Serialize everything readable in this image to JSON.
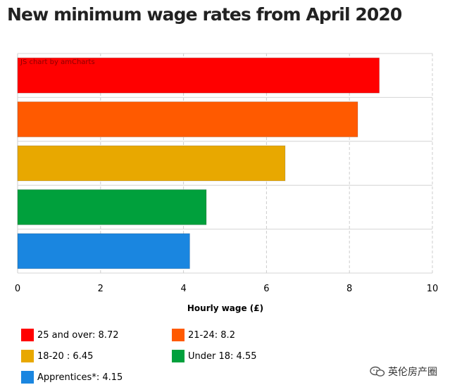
{
  "title": "New minimum wage rates from April 2020",
  "credit": "JS chart by amCharts",
  "watermark": "英伦房产圈",
  "chart_data": {
    "type": "bar",
    "orientation": "horizontal",
    "categories": [
      "25 and over",
      "21-24",
      "18-20",
      "Under 18",
      "Apprentices*"
    ],
    "values": [
      8.72,
      8.2,
      6.45,
      4.55,
      4.15
    ],
    "colors": [
      "#ff0000",
      "#ff5a00",
      "#e8a800",
      "#00a03c",
      "#1a86e0"
    ],
    "xlabel": "Hourly wage (£)",
    "xlim": [
      0,
      10
    ],
    "ticks": [
      "0",
      "2",
      "4",
      "6",
      "8",
      "10"
    ],
    "grid": true,
    "legend_position": "bottom"
  },
  "legend": [
    {
      "label": "25 and over: 8.72",
      "color": "#ff0000"
    },
    {
      "label": "21-24: 8.2",
      "color": "#ff5a00"
    },
    {
      "label": "18-20 : 6.45",
      "color": "#e8a800"
    },
    {
      "label": "Under 18: 4.55",
      "color": "#00a03c"
    },
    {
      "label": "Apprentices*: 4.15",
      "color": "#1a86e0"
    }
  ]
}
